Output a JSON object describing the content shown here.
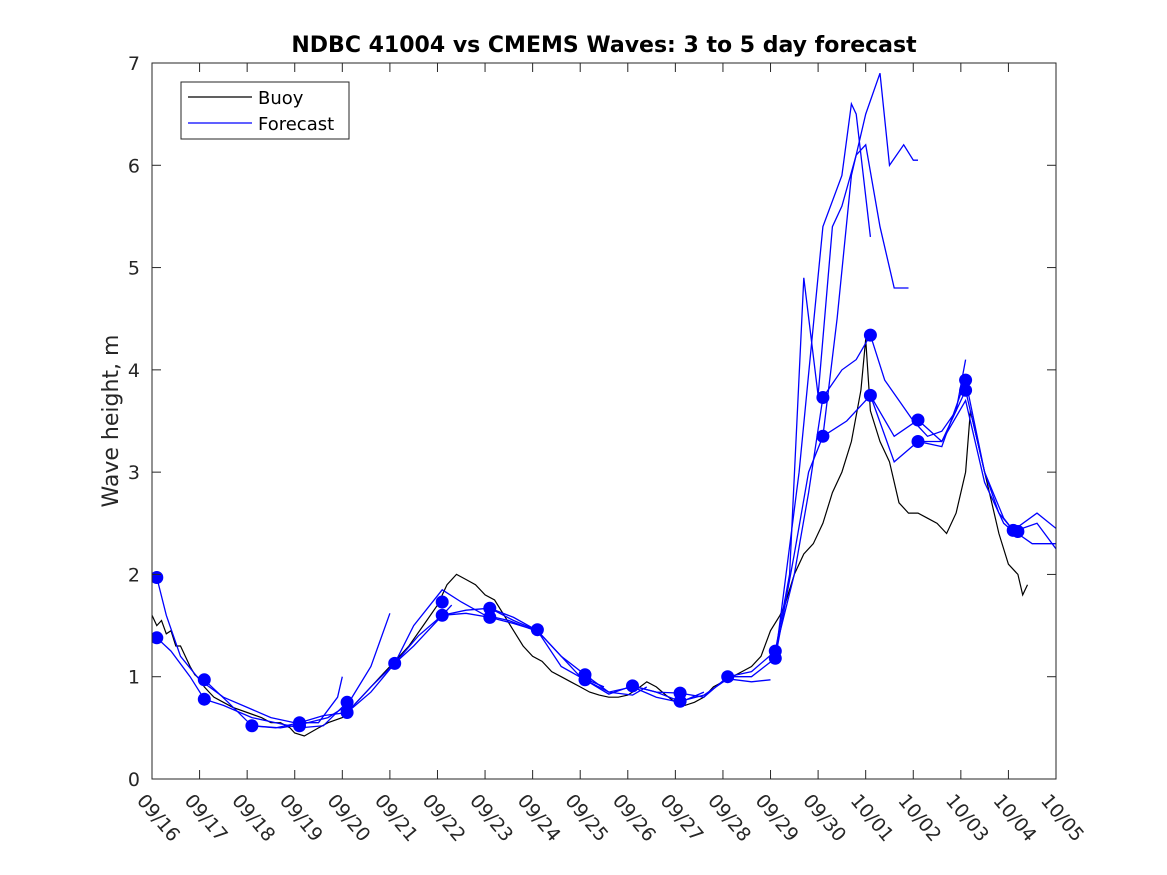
{
  "chart_data": {
    "type": "line",
    "title": "NDBC 41004 vs CMEMS Waves: 3 to 5 day forecast",
    "xlabel": "",
    "ylabel": "Wave height, m",
    "xlim": [
      0,
      19
    ],
    "ylim": [
      0,
      7
    ],
    "x_tick_labels": [
      "09/16",
      "09/17",
      "09/18",
      "09/19",
      "09/20",
      "09/21",
      "09/22",
      "09/23",
      "09/24",
      "09/25",
      "09/26",
      "09/27",
      "09/28",
      "09/29",
      "09/30",
      "10/01",
      "10/02",
      "10/03",
      "10/04",
      "10/05"
    ],
    "y_ticks": [
      0,
      1,
      2,
      3,
      4,
      5,
      6,
      7
    ],
    "legend": {
      "position": "top-left",
      "entries": [
        {
          "label": "Buoy",
          "color": "#000000"
        },
        {
          "label": "Forecast",
          "color": "#0000ff"
        }
      ]
    },
    "colors": {
      "buoy": "#000000",
      "forecast": "#0000ff",
      "marker": "#0000ff"
    },
    "buoy": {
      "name": "Buoy",
      "points": [
        [
          0,
          1.6
        ],
        [
          0.1,
          1.5
        ],
        [
          0.2,
          1.55
        ],
        [
          0.3,
          1.42
        ],
        [
          0.4,
          1.45
        ],
        [
          0.5,
          1.3
        ],
        [
          0.6,
          1.3
        ],
        [
          0.7,
          1.2
        ],
        [
          0.8,
          1.1
        ],
        [
          0.9,
          1.02
        ],
        [
          1.0,
          0.98
        ],
        [
          1.1,
          0.9
        ],
        [
          1.2,
          0.85
        ],
        [
          1.3,
          0.8
        ],
        [
          1.5,
          0.75
        ],
        [
          1.7,
          0.7
        ],
        [
          2.0,
          0.65
        ],
        [
          2.3,
          0.6
        ],
        [
          2.5,
          0.55
        ],
        [
          2.7,
          0.55
        ],
        [
          2.9,
          0.5
        ],
        [
          3.0,
          0.45
        ],
        [
          3.2,
          0.42
        ],
        [
          3.5,
          0.5
        ],
        [
          3.7,
          0.55
        ],
        [
          4.0,
          0.6
        ],
        [
          4.2,
          0.7
        ],
        [
          4.5,
          0.85
        ],
        [
          4.8,
          1.0
        ],
        [
          5.1,
          1.15
        ],
        [
          5.4,
          1.3
        ],
        [
          5.7,
          1.5
        ],
        [
          6.0,
          1.7
        ],
        [
          6.2,
          1.9
        ],
        [
          6.4,
          2.0
        ],
        [
          6.6,
          1.95
        ],
        [
          6.8,
          1.9
        ],
        [
          7.0,
          1.8
        ],
        [
          7.2,
          1.75
        ],
        [
          7.4,
          1.6
        ],
        [
          7.6,
          1.45
        ],
        [
          7.8,
          1.3
        ],
        [
          8.0,
          1.2
        ],
        [
          8.2,
          1.15
        ],
        [
          8.4,
          1.05
        ],
        [
          8.6,
          1.0
        ],
        [
          8.8,
          0.95
        ],
        [
          9.0,
          0.9
        ],
        [
          9.2,
          0.85
        ],
        [
          9.4,
          0.82
        ],
        [
          9.6,
          0.8
        ],
        [
          9.8,
          0.8
        ],
        [
          10.0,
          0.82
        ],
        [
          10.2,
          0.88
        ],
        [
          10.4,
          0.95
        ],
        [
          10.6,
          0.9
        ],
        [
          10.8,
          0.82
        ],
        [
          11.0,
          0.75
        ],
        [
          11.2,
          0.72
        ],
        [
          11.4,
          0.75
        ],
        [
          11.6,
          0.8
        ],
        [
          11.8,
          0.9
        ],
        [
          12.0,
          0.95
        ],
        [
          12.2,
          1.0
        ],
        [
          12.4,
          1.05
        ],
        [
          12.6,
          1.1
        ],
        [
          12.8,
          1.2
        ],
        [
          13.0,
          1.45
        ],
        [
          13.2,
          1.6
        ],
        [
          13.3,
          1.7
        ],
        [
          13.5,
          2.0
        ],
        [
          13.7,
          2.2
        ],
        [
          13.9,
          2.3
        ],
        [
          14.1,
          2.5
        ],
        [
          14.3,
          2.8
        ],
        [
          14.5,
          3.0
        ],
        [
          14.7,
          3.3
        ],
        [
          14.9,
          3.8
        ],
        [
          15.0,
          4.3
        ],
        [
          15.1,
          3.6
        ],
        [
          15.3,
          3.3
        ],
        [
          15.5,
          3.1
        ],
        [
          15.7,
          2.7
        ],
        [
          15.9,
          2.6
        ],
        [
          16.1,
          2.6
        ],
        [
          16.3,
          2.55
        ],
        [
          16.5,
          2.5
        ],
        [
          16.7,
          2.4
        ],
        [
          16.9,
          2.6
        ],
        [
          17.1,
          3.0
        ],
        [
          17.2,
          3.6
        ],
        [
          17.4,
          3.2
        ],
        [
          17.6,
          2.8
        ],
        [
          17.8,
          2.4
        ],
        [
          18.0,
          2.1
        ],
        [
          18.2,
          2.0
        ],
        [
          18.3,
          1.8
        ],
        [
          18.4,
          1.9
        ]
      ]
    },
    "forecast_series": [
      {
        "name": "Forecast",
        "points": [
          [
            0.1,
            1.97
          ],
          [
            0.3,
            1.6
          ],
          [
            0.6,
            1.2
          ],
          [
            1.0,
            0.97
          ],
          [
            1.5,
            0.8
          ],
          [
            2.0,
            0.7
          ],
          [
            2.5,
            0.6
          ],
          [
            3.0,
            0.55
          ],
          [
            3.5,
            0.55
          ],
          [
            3.9,
            0.8
          ],
          [
            4.0,
            1.0
          ]
        ]
      },
      {
        "name": "Forecast",
        "points": [
          [
            0.1,
            1.38
          ],
          [
            0.4,
            1.25
          ],
          [
            0.8,
            1.0
          ],
          [
            1.1,
            0.78
          ],
          [
            1.5,
            0.72
          ],
          [
            2.1,
            0.6
          ],
          [
            2.6,
            0.55
          ],
          [
            3.1,
            0.5
          ],
          [
            3.6,
            0.52
          ],
          [
            4.1,
            0.75
          ]
        ]
      },
      {
        "name": "Forecast",
        "points": [
          [
            1.1,
            0.97
          ],
          [
            1.6,
            0.75
          ],
          [
            2.1,
            0.52
          ],
          [
            2.7,
            0.5
          ],
          [
            3.1,
            0.53
          ],
          [
            3.7,
            0.6
          ],
          [
            4.1,
            0.72
          ],
          [
            4.6,
            1.1
          ],
          [
            5.0,
            1.62
          ]
        ]
      },
      {
        "name": "Forecast",
        "points": [
          [
            2.1,
            0.52
          ],
          [
            2.6,
            0.5
          ],
          [
            3.1,
            0.55
          ],
          [
            3.6,
            0.62
          ],
          [
            4.1,
            0.65
          ],
          [
            4.6,
            0.9
          ],
          [
            5.1,
            1.13
          ],
          [
            5.5,
            1.3
          ],
          [
            6.0,
            1.55
          ],
          [
            6.3,
            1.7
          ]
        ]
      },
      {
        "name": "Forecast",
        "points": [
          [
            4.1,
            0.65
          ],
          [
            4.6,
            0.85
          ],
          [
            5.1,
            1.13
          ],
          [
            5.5,
            1.5
          ],
          [
            6.1,
            1.85
          ],
          [
            6.5,
            1.73
          ],
          [
            7.0,
            1.6
          ],
          [
            7.5,
            1.55
          ],
          [
            8.0,
            1.46
          ]
        ]
      },
      {
        "name": "Forecast",
        "points": [
          [
            5.1,
            1.13
          ],
          [
            5.6,
            1.4
          ],
          [
            6.1,
            1.6
          ],
          [
            6.6,
            1.62
          ],
          [
            7.1,
            1.58
          ],
          [
            7.6,
            1.52
          ],
          [
            8.1,
            1.45
          ],
          [
            8.5,
            1.25
          ],
          [
            9.0,
            1.0
          ],
          [
            9.5,
            0.9
          ]
        ]
      },
      {
        "name": "Forecast",
        "points": [
          [
            6.1,
            1.6
          ],
          [
            6.6,
            1.65
          ],
          [
            7.1,
            1.67
          ],
          [
            7.6,
            1.58
          ],
          [
            8.1,
            1.45
          ],
          [
            8.6,
            1.2
          ],
          [
            9.1,
            1.02
          ],
          [
            9.6,
            0.85
          ],
          [
            10.1,
            0.82
          ],
          [
            10.4,
            0.9
          ]
        ]
      },
      {
        "name": "Forecast",
        "points": [
          [
            7.1,
            1.67
          ],
          [
            7.6,
            1.55
          ],
          [
            8.1,
            1.45
          ],
          [
            8.6,
            1.1
          ],
          [
            9.1,
            0.97
          ],
          [
            9.6,
            0.85
          ],
          [
            10.1,
            0.9
          ],
          [
            10.6,
            0.8
          ],
          [
            11.1,
            0.75
          ],
          [
            11.6,
            0.85
          ]
        ]
      },
      {
        "name": "Forecast",
        "points": [
          [
            9.1,
            0.97
          ],
          [
            9.6,
            0.83
          ],
          [
            10.1,
            0.91
          ],
          [
            10.6,
            0.85
          ],
          [
            11.1,
            0.76
          ],
          [
            11.6,
            0.82
          ],
          [
            12.1,
            0.98
          ],
          [
            12.6,
            0.95
          ],
          [
            13.0,
            0.97
          ]
        ]
      },
      {
        "name": "Forecast",
        "points": [
          [
            10.1,
            0.91
          ],
          [
            10.6,
            0.85
          ],
          [
            11.1,
            0.84
          ],
          [
            11.6,
            0.8
          ],
          [
            12.1,
            1.0
          ],
          [
            12.6,
            1.0
          ],
          [
            13.1,
            1.18
          ],
          [
            13.6,
            3.0
          ],
          [
            14.1,
            5.4
          ],
          [
            14.5,
            5.9
          ],
          [
            14.7,
            6.6
          ],
          [
            14.8,
            6.5
          ],
          [
            15.1,
            5.3
          ]
        ]
      },
      {
        "name": "Forecast",
        "points": [
          [
            12.1,
            1.0
          ],
          [
            12.6,
            1.05
          ],
          [
            13.1,
            1.25
          ],
          [
            13.4,
            2.0
          ],
          [
            13.7,
            4.9
          ],
          [
            14.0,
            3.75
          ],
          [
            14.3,
            5.4
          ],
          [
            14.5,
            5.6
          ],
          [
            14.8,
            6.1
          ],
          [
            15.0,
            6.2
          ],
          [
            15.3,
            5.4
          ],
          [
            15.6,
            4.8
          ],
          [
            15.9,
            4.8
          ]
        ]
      },
      {
        "name": "Forecast",
        "points": [
          [
            13.1,
            1.18
          ],
          [
            13.5,
            2.2
          ],
          [
            13.8,
            3.0
          ],
          [
            14.1,
            3.35
          ],
          [
            14.4,
            4.5
          ],
          [
            14.7,
            5.9
          ],
          [
            15.0,
            6.5
          ],
          [
            15.3,
            6.9
          ],
          [
            15.5,
            6.0
          ],
          [
            15.8,
            6.2
          ],
          [
            16.0,
            6.05
          ],
          [
            16.1,
            6.05
          ]
        ]
      },
      {
        "name": "Forecast",
        "points": [
          [
            13.1,
            1.25
          ],
          [
            13.5,
            2.0
          ],
          [
            13.8,
            2.8
          ],
          [
            14.1,
            3.73
          ],
          [
            14.5,
            4.0
          ],
          [
            14.8,
            4.1
          ],
          [
            15.1,
            4.34
          ],
          [
            15.4,
            3.9
          ],
          [
            15.7,
            3.7
          ],
          [
            16.0,
            3.5
          ],
          [
            16.3,
            3.35
          ],
          [
            16.6,
            3.4
          ],
          [
            16.9,
            3.6
          ],
          [
            17.1,
            4.1
          ]
        ]
      },
      {
        "name": "Forecast",
        "points": [
          [
            14.1,
            3.35
          ],
          [
            14.6,
            3.5
          ],
          [
            15.1,
            3.75
          ],
          [
            15.6,
            3.35
          ],
          [
            16.1,
            3.51
          ],
          [
            16.6,
            3.3
          ],
          [
            17.1,
            3.7
          ],
          [
            17.5,
            2.9
          ],
          [
            17.9,
            2.5
          ],
          [
            18.1,
            2.42
          ],
          [
            18.6,
            2.5
          ],
          [
            19.0,
            2.25
          ]
        ]
      },
      {
        "name": "Forecast",
        "points": [
          [
            15.1,
            3.75
          ],
          [
            15.6,
            3.1
          ],
          [
            16.1,
            3.3
          ],
          [
            16.6,
            3.25
          ],
          [
            17.1,
            3.9
          ],
          [
            17.5,
            3.0
          ],
          [
            17.9,
            2.55
          ],
          [
            18.1,
            2.43
          ],
          [
            18.5,
            2.3
          ],
          [
            19.0,
            2.3
          ]
        ]
      },
      {
        "name": "Forecast",
        "points": [
          [
            16.1,
            3.3
          ],
          [
            16.6,
            3.3
          ],
          [
            17.1,
            3.8
          ],
          [
            17.5,
            3.0
          ],
          [
            17.8,
            2.6
          ],
          [
            18.1,
            2.43
          ],
          [
            18.6,
            2.6
          ],
          [
            19.0,
            2.45
          ]
        ]
      }
    ],
    "markers": [
      [
        0.1,
        1.97
      ],
      [
        0.1,
        1.38
      ],
      [
        1.1,
        0.97
      ],
      [
        1.1,
        0.78
      ],
      [
        2.1,
        0.52
      ],
      [
        3.1,
        0.55
      ],
      [
        3.1,
        0.52
      ],
      [
        4.1,
        0.75
      ],
      [
        4.1,
        0.65
      ],
      [
        5.1,
        1.13
      ],
      [
        6.1,
        1.73
      ],
      [
        6.1,
        1.6
      ],
      [
        7.1,
        1.67
      ],
      [
        7.1,
        1.58
      ],
      [
        8.1,
        1.46
      ],
      [
        9.1,
        1.02
      ],
      [
        9.1,
        0.97
      ],
      [
        10.1,
        0.91
      ],
      [
        11.1,
        0.84
      ],
      [
        11.1,
        0.76
      ],
      [
        12.1,
        1.0
      ],
      [
        13.1,
        1.25
      ],
      [
        13.1,
        1.18
      ],
      [
        14.1,
        3.73
      ],
      [
        14.1,
        3.35
      ],
      [
        15.1,
        4.34
      ],
      [
        15.1,
        3.75
      ],
      [
        16.1,
        3.51
      ],
      [
        16.1,
        3.3
      ],
      [
        17.1,
        3.9
      ],
      [
        17.1,
        3.8
      ],
      [
        18.1,
        2.43
      ],
      [
        18.2,
        2.42
      ]
    ]
  }
}
